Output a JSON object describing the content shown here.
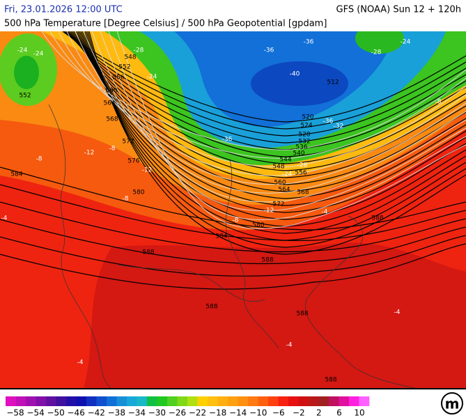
{
  "header": {
    "date": "Fri, 23.01.2026 12:00 UTC",
    "model": "GFS (NOAA) Sun 12 + 120h",
    "subtitle": "500 hPa Temperature [Degree Celsius] / 500 hPa Geopotential [gpdam]"
  },
  "geopotential_labels": [
    "548",
    "552",
    "556",
    "560",
    "564",
    "568",
    "572",
    "576",
    "580",
    "584",
    "580",
    "588",
    "588",
    "588",
    "588",
    "588",
    "588",
    "584",
    "552",
    "512",
    "520",
    "524",
    "528",
    "532",
    "536",
    "540",
    "544",
    "548",
    "556",
    "560",
    "564",
    "568",
    "572"
  ],
  "temperature_labels": [
    "-24",
    "-24",
    "-28",
    "-24",
    "-36",
    "-36",
    "-40",
    "-36",
    "-36",
    "-32",
    "-28",
    "-24",
    "-8",
    "-12",
    "-8",
    "-12",
    "-8",
    "-8",
    "-12",
    "-8",
    "-4",
    "-4",
    "-4",
    "-4",
    "-4",
    "-28",
    "-24"
  ],
  "colorbar": {
    "labels": [
      "−58",
      "−54",
      "−50",
      "−46",
      "−42",
      "−38",
      "−34",
      "−30",
      "−26",
      "−22",
      "−18",
      "−14",
      "−10",
      "−6",
      "−2",
      "2",
      "6",
      "10"
    ]
  },
  "logo": "m"
}
